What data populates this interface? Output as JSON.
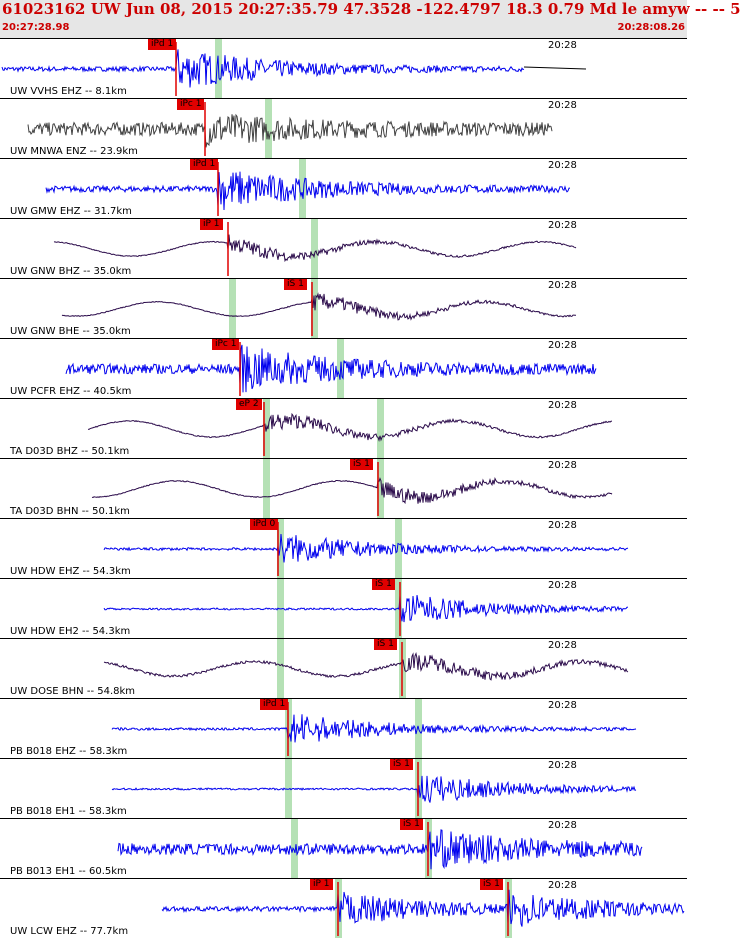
{
  "header": {
    "title": "61023162 UW Jun 08, 2015 20:27:35.79    47.3528 -122.4797 18.3 0.79 Md le amyw -- --    5",
    "start_time": "20:27:28.98",
    "end_time": "20:28:08.26"
  },
  "colors": {
    "header_bg": "#e6e6e6",
    "header_text": "#cc0000",
    "trace_blue": "#0000ee",
    "trace_gray": "#404040",
    "trace_purple": "#2a0a4a",
    "pick_red": "#e00000",
    "phase_window": "#a8dca8"
  },
  "panels": [
    {
      "label": "UW VVHS EHZ -- 8.1km",
      "time_mark": "20:28",
      "color": "blue",
      "picks": [
        {
          "text": "iPd 1"
        }
      ]
    },
    {
      "label": "UW MNWA ENZ -- 23.9km",
      "time_mark": "20:28",
      "color": "gray",
      "picks": [
        {
          "text": "iPc 1"
        }
      ]
    },
    {
      "label": "UW GMW EHZ -- 31.7km",
      "time_mark": "20:28",
      "color": "blue",
      "picks": [
        {
          "text": "iPd 1"
        }
      ]
    },
    {
      "label": "UW GNW BHZ -- 35.0km",
      "time_mark": "20:28",
      "color": "purple",
      "picks": [
        {
          "text": "iP 1"
        }
      ]
    },
    {
      "label": "UW GNW BHE -- 35.0km",
      "time_mark": "20:28",
      "color": "purple",
      "picks": [
        {
          "text": "iS 1"
        }
      ]
    },
    {
      "label": "UW PCFR EHZ -- 40.5km",
      "time_mark": "20:28",
      "color": "blue",
      "picks": [
        {
          "text": "iPc 1"
        }
      ]
    },
    {
      "label": "TA D03D BHZ -- 50.1km",
      "time_mark": "20:28",
      "color": "purple",
      "picks": [
        {
          "text": "eP 2"
        }
      ]
    },
    {
      "label": "TA D03D BHN -- 50.1km",
      "time_mark": "20:28",
      "color": "purple",
      "picks": [
        {
          "text": "iS 1"
        }
      ]
    },
    {
      "label": "UW HDW EHZ -- 54.3km",
      "time_mark": "20:28",
      "color": "blue",
      "picks": [
        {
          "text": "iPd 0"
        }
      ]
    },
    {
      "label": "UW HDW EH2 -- 54.3km",
      "time_mark": "20:28",
      "color": "blue",
      "picks": [
        {
          "text": "iS 1"
        }
      ]
    },
    {
      "label": "UW DOSE BHN -- 54.8km",
      "time_mark": "20:28",
      "color": "purple",
      "picks": [
        {
          "text": "iS 1"
        }
      ]
    },
    {
      "label": "PB B018 EHZ -- 58.3km",
      "time_mark": "20:28",
      "color": "blue",
      "picks": [
        {
          "text": "iPd 1"
        }
      ]
    },
    {
      "label": "PB B018 EH1 -- 58.3km",
      "time_mark": "20:28",
      "color": "blue",
      "picks": [
        {
          "text": "iS 1"
        }
      ]
    },
    {
      "label": "PB B013 EH1 -- 60.5km",
      "time_mark": "20:28",
      "color": "blue",
      "picks": [
        {
          "text": "iS 1"
        }
      ]
    },
    {
      "label": "UW LCW EHZ -- 77.7km",
      "time_mark": "20:28",
      "color": "blue",
      "picks": [
        {
          "text": "iP 1"
        },
        {
          "text": "iS 1"
        }
      ]
    }
  ]
}
